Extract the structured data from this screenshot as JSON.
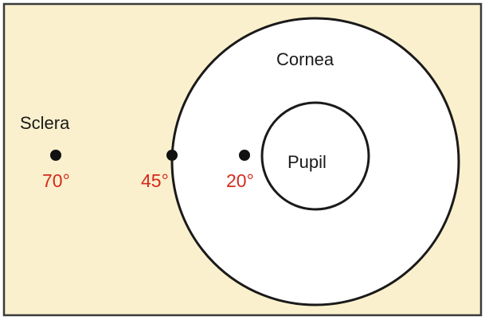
{
  "labels": {
    "sclera": "Sclera",
    "cornea": "Cornea",
    "pupil": "Pupil"
  },
  "markers": [
    {
      "id": "marker-70",
      "angle_label": "70°"
    },
    {
      "id": "marker-45",
      "angle_label": "45°"
    },
    {
      "id": "marker-20",
      "angle_label": "20°"
    }
  ],
  "colors": {
    "sclera_background": "#faf0cd",
    "cornea_fill": "#ffffff",
    "outline": "#1a1a1a",
    "angle_label": "#d42a1e",
    "frame": "#3a3a3a"
  }
}
